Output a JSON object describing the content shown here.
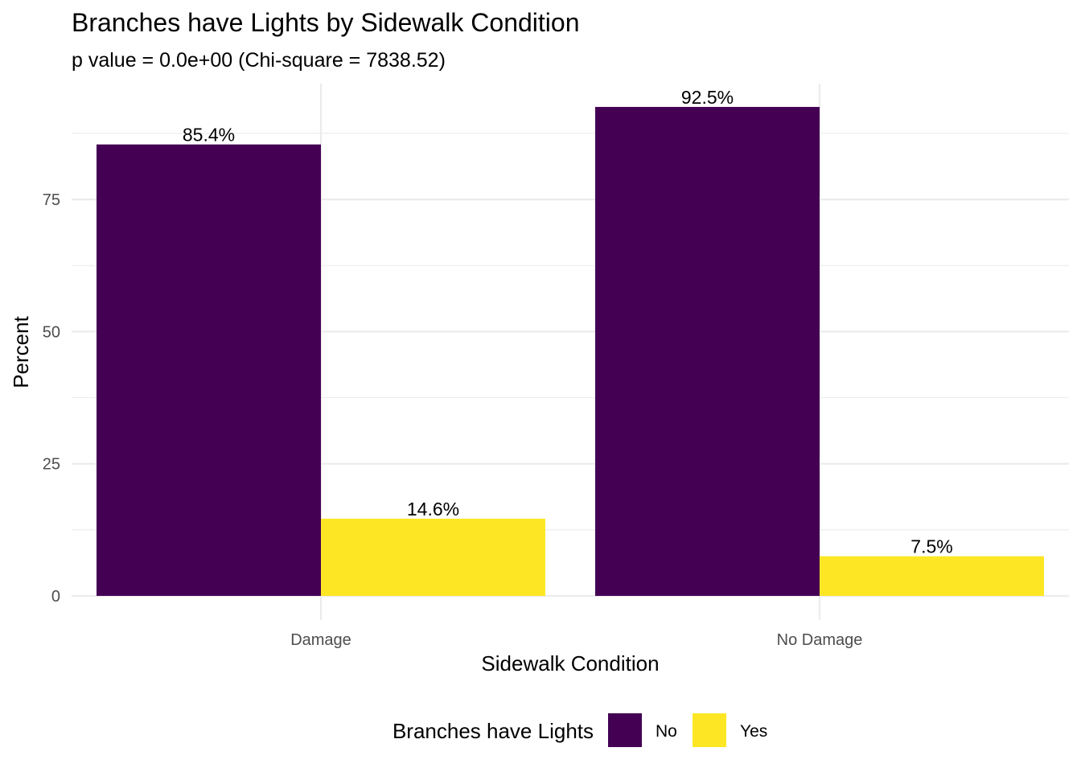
{
  "chart_data": {
    "type": "bar",
    "title": "Branches have Lights by Sidewalk Condition",
    "subtitle": "p value = 0.0e+00 (Chi-square = 7838.52)",
    "xlabel": "Sidewalk Condition",
    "ylabel": "Percent",
    "categories": [
      "Damage",
      "No Damage"
    ],
    "series": [
      {
        "name": "No",
        "color": "#440154",
        "values": [
          85.4,
          92.5
        ],
        "labels": [
          "85.4%",
          "92.5%"
        ]
      },
      {
        "name": "Yes",
        "color": "#FDE725",
        "values": [
          14.6,
          7.5
        ],
        "labels": [
          "14.6%",
          "7.5%"
        ]
      }
    ],
    "yticks": [
      0,
      25,
      50,
      75
    ],
    "ylim": [
      0,
      97
    ],
    "grid": true,
    "legend": {
      "title": "Branches have Lights",
      "position": "bottom"
    }
  }
}
